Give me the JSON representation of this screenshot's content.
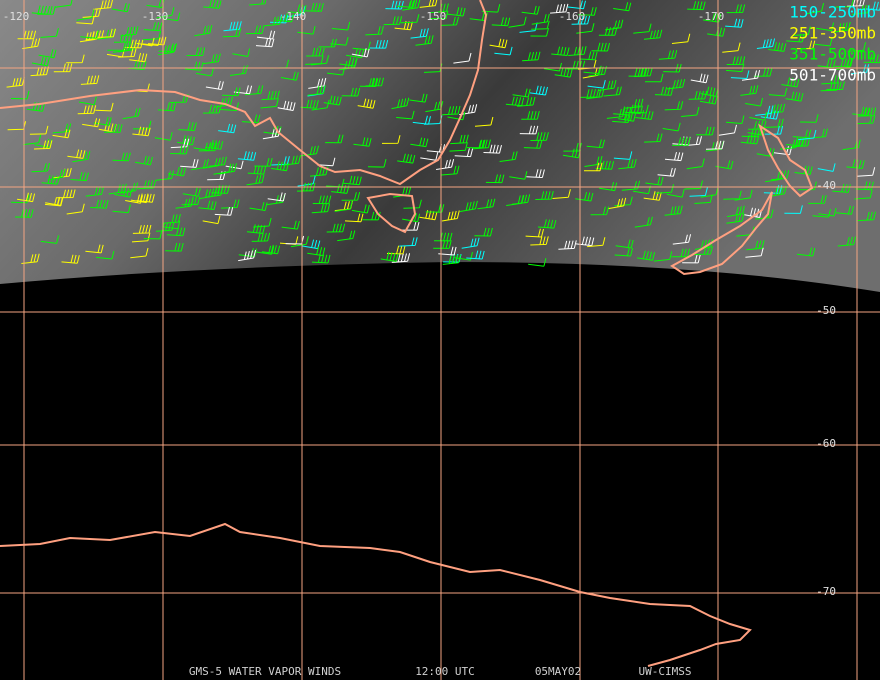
{
  "longitude_labels": [
    "-120",
    "-130",
    "-140",
    "-150",
    "-160",
    "-170"
  ],
  "latitude_labels": [
    "-40",
    "-50",
    "-60",
    "-70"
  ],
  "legend": [
    {
      "label": "150-250mb",
      "color": "#00ffff"
    },
    {
      "label": "251-350mb",
      "color": "#ffff00"
    },
    {
      "label": "351-500mb",
      "color": "#00ff00"
    },
    {
      "label": "501-700mb",
      "color": "#ffffff"
    }
  ],
  "footer": [
    "GMS-5 WATER VAPOR WINDS",
    "12:00 UTC",
    "05MAY02",
    "UW-CIMSS"
  ]
}
